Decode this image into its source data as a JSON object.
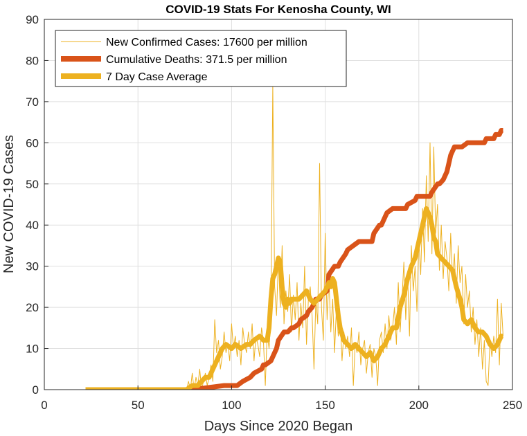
{
  "chart_data": {
    "type": "line",
    "title": "COVID-19 Stats For Kenosha County, WI",
    "xlabel": "Days Since 2020 Began",
    "ylabel": "New COVID-19 Cases",
    "xlim": [
      0,
      250
    ],
    "ylim": [
      0,
      90
    ],
    "xticks": [
      0,
      50,
      100,
      150,
      200,
      250
    ],
    "yticks": [
      0,
      10,
      20,
      30,
      40,
      50,
      60,
      70,
      80,
      90
    ],
    "grid": true,
    "legend_position": "top-left",
    "series": [
      {
        "name": "New Confirmed Cases: 17600 per million",
        "style": "thin",
        "color": "#EDB120",
        "x": [
          22,
          50,
          76,
          77,
          78,
          79,
          80,
          81,
          82,
          83,
          84,
          85,
          86,
          87,
          88,
          89,
          90,
          91,
          92,
          93,
          94,
          95,
          96,
          97,
          98,
          99,
          100,
          101,
          102,
          103,
          104,
          105,
          106,
          107,
          108,
          109,
          110,
          111,
          112,
          113,
          114,
          115,
          116,
          117,
          118,
          119,
          120,
          121,
          122,
          123,
          124,
          125,
          126,
          127,
          128,
          129,
          130,
          131,
          132,
          133,
          134,
          135,
          136,
          137,
          138,
          139,
          140,
          141,
          142,
          143,
          144,
          145,
          146,
          147,
          148,
          149,
          150,
          151,
          152,
          153,
          154,
          155,
          156,
          157,
          158,
          159,
          160,
          161,
          162,
          163,
          164,
          165,
          166,
          167,
          168,
          169,
          170,
          171,
          172,
          173,
          174,
          175,
          176,
          177,
          178,
          179,
          180,
          181,
          182,
          183,
          184,
          185,
          186,
          187,
          188,
          189,
          190,
          191,
          192,
          193,
          194,
          195,
          196,
          197,
          198,
          199,
          200,
          201,
          202,
          203,
          204,
          205,
          206,
          207,
          208,
          209,
          210,
          211,
          212,
          213,
          214,
          215,
          216,
          217,
          218,
          219,
          220,
          221,
          222,
          223,
          224,
          225,
          226,
          227,
          228,
          229,
          230,
          231,
          232,
          233,
          234,
          235,
          236,
          237,
          238,
          239,
          240,
          241,
          242,
          243,
          244,
          245
        ],
        "y": [
          0,
          0,
          0,
          2,
          0,
          4,
          0,
          3,
          1,
          5,
          0,
          2,
          4,
          1,
          3,
          6,
          2,
          17,
          9,
          12,
          5,
          8,
          14,
          9,
          11,
          7,
          16,
          10,
          13,
          8,
          12,
          6,
          15,
          11,
          9,
          14,
          10,
          16,
          7,
          13,
          11,
          8,
          15,
          12,
          1,
          14,
          10,
          17,
          74,
          25,
          18,
          32,
          20,
          35,
          16,
          24,
          19,
          28,
          14,
          23,
          17,
          26,
          12,
          21,
          15,
          30,
          11,
          22,
          25,
          18,
          5,
          22,
          16,
          55,
          20,
          12,
          38,
          17,
          27,
          14,
          22,
          9,
          20,
          13,
          17,
          7,
          14,
          10,
          13,
          8,
          15,
          1,
          11,
          9,
          14,
          6,
          10,
          12,
          4,
          9,
          11,
          3,
          10,
          8,
          1,
          12,
          14,
          9,
          16,
          10,
          18,
          12,
          15,
          20,
          11,
          26,
          14,
          22,
          31,
          17,
          28,
          13,
          35,
          24,
          30,
          19,
          37,
          28,
          44,
          31,
          52,
          36,
          60,
          33,
          59,
          38,
          45,
          29,
          40,
          27,
          36,
          32,
          24,
          38,
          27,
          33,
          21,
          35,
          26,
          30,
          16,
          28,
          20,
          24,
          14,
          20,
          11,
          17,
          8,
          15,
          5,
          12,
          2,
          1,
          12,
          8,
          13,
          9,
          22,
          6,
          21,
          13
        ]
      },
      {
        "name": "Cumulative Deaths: 371.5 per million",
        "style": "thick",
        "color": "#D95319",
        "x": [
          22,
          79,
          96,
          103,
          106,
          110,
          112,
          116,
          117,
          118,
          121,
          122,
          124,
          125,
          128,
          130,
          132,
          133,
          136,
          137,
          140,
          141,
          143,
          144,
          145,
          147,
          148,
          151,
          152,
          155,
          157,
          158,
          161,
          162,
          168,
          169,
          172,
          173,
          175,
          176,
          179,
          180,
          182,
          183,
          186,
          187,
          193,
          194,
          198,
          199,
          206,
          207,
          210,
          211,
          213,
          214,
          215,
          216,
          217,
          218,
          219,
          220,
          222,
          223,
          226,
          227,
          230,
          231,
          235,
          236,
          238,
          239,
          240,
          241,
          242,
          243,
          244,
          245
        ],
        "y": [
          0,
          0,
          1,
          1,
          2,
          3,
          4,
          5,
          6,
          6,
          7,
          8,
          10,
          12,
          14,
          14,
          15,
          15,
          16,
          17,
          18,
          19,
          20,
          21,
          22,
          22,
          23,
          24,
          28,
          30,
          30,
          31,
          33,
          34,
          36,
          36,
          36,
          36,
          36,
          38,
          40,
          40,
          42,
          43,
          44,
          44,
          44,
          45,
          46,
          47,
          47,
          48,
          50,
          50,
          51,
          52,
          53,
          55,
          57,
          58,
          59,
          59,
          59,
          59,
          60,
          60,
          60,
          60,
          60,
          61,
          61,
          61,
          61,
          62,
          62,
          62,
          63,
          63
        ]
      },
      {
        "name": "7 Day Case Average",
        "style": "thick",
        "color": "#EDB120",
        "x": [
          22,
          60,
          76,
          79,
          82,
          84,
          86,
          88,
          90,
          93,
          95,
          97,
          100,
          102,
          105,
          108,
          110,
          112,
          115,
          117,
          119,
          120,
          121,
          122,
          123,
          124,
          125,
          126,
          127,
          128,
          129,
          130,
          131,
          132,
          134,
          136,
          138,
          140,
          142,
          144,
          146,
          148,
          150,
          152,
          153,
          154,
          155,
          156,
          157,
          158,
          160,
          162,
          164,
          166,
          168,
          170,
          172,
          174,
          176,
          178,
          180,
          182,
          184,
          186,
          188,
          190,
          192,
          194,
          196,
          198,
          200,
          202,
          204,
          205,
          206,
          207,
          208,
          209,
          210,
          212,
          214,
          216,
          218,
          220,
          222,
          223,
          224,
          226,
          228,
          230,
          232,
          234,
          236,
          238,
          240,
          242,
          244,
          245
        ],
        "y": [
          0,
          0,
          0,
          1,
          1,
          2,
          3,
          3,
          5,
          8,
          10,
          11,
          10,
          11,
          10,
          11,
          11,
          12,
          13,
          12,
          12,
          15,
          22,
          27,
          28,
          30,
          32,
          31,
          25,
          21,
          20,
          22,
          21,
          22,
          22,
          22,
          23,
          24,
          22,
          21,
          22,
          23,
          24,
          26,
          25,
          27,
          26,
          22,
          18,
          15,
          12,
          11,
          10,
          11,
          10,
          9,
          8,
          9,
          7,
          8,
          10,
          11,
          13,
          15,
          15,
          20,
          23,
          27,
          30,
          32,
          36,
          40,
          44,
          43,
          42,
          40,
          37,
          36,
          33,
          32,
          31,
          30,
          29,
          25,
          22,
          20,
          17,
          16,
          17,
          15,
          14,
          14,
          13,
          11,
          10,
          11,
          13,
          13
        ]
      }
    ]
  }
}
